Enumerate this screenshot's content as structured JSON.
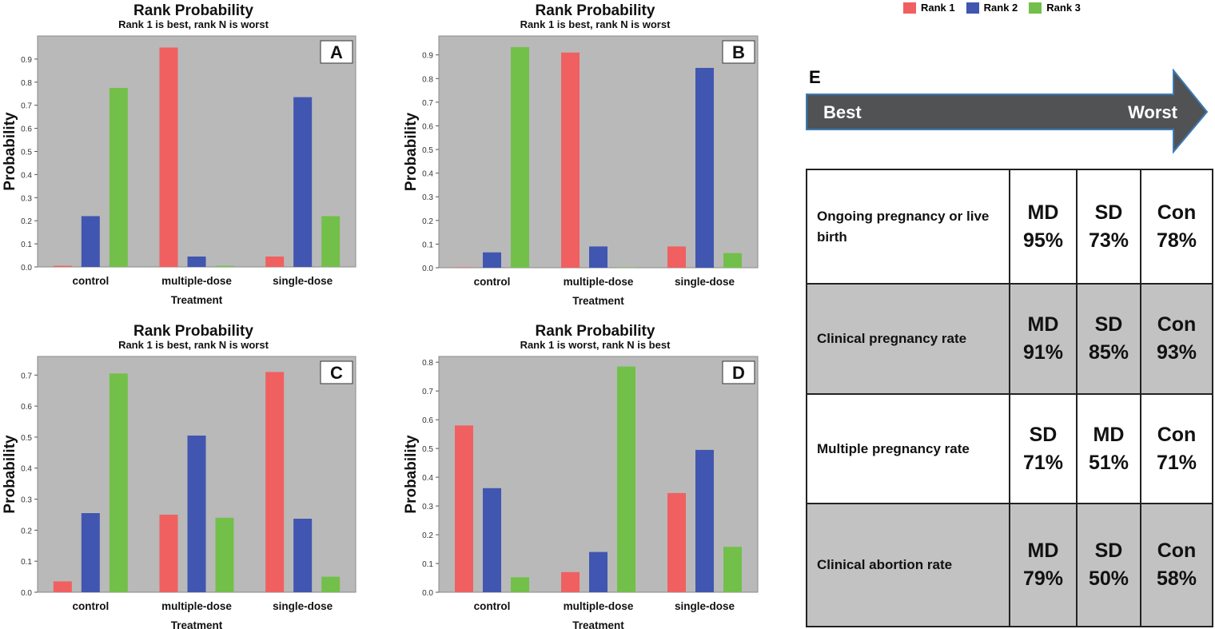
{
  "colors": {
    "rank1": "#f06060",
    "rank2": "#4056b0",
    "rank3": "#72c04a",
    "plot_bg": "#b9b9b9",
    "arrow": "#505254",
    "arrow_edge": "#3a7bb8",
    "row_gray": "#c2c2c2"
  },
  "legend": [
    {
      "label": "Rank 1",
      "color": "#f06060"
    },
    {
      "label": "Rank 2",
      "color": "#4056b0"
    },
    {
      "label": "Rank 3",
      "color": "#72c04a"
    }
  ],
  "chart_data": [
    {
      "panel": "A",
      "type": "bar",
      "title": "Rank Probability",
      "subtitle": "Rank 1 is best, rank N is worst",
      "xlabel": "Treatment",
      "ylabel": "Probability",
      "categories": [
        "control",
        "multiple-dose",
        "single-dose"
      ],
      "ylim": [
        0,
        1.0
      ],
      "yticks": [
        "0.0",
        "0.1",
        "0.2",
        "0.3",
        "0.4",
        "0.5",
        "0.6",
        "0.7",
        "0.8",
        "0.9"
      ],
      "series": [
        {
          "name": "Rank 1",
          "values": [
            0.005,
            0.95,
            0.045
          ]
        },
        {
          "name": "Rank 2",
          "values": [
            0.22,
            0.045,
            0.735
          ]
        },
        {
          "name": "Rank 3",
          "values": [
            0.775,
            0.005,
            0.22
          ]
        }
      ]
    },
    {
      "panel": "B",
      "type": "bar",
      "title": "Rank Probability",
      "subtitle": "Rank 1 is best, rank N is worst",
      "xlabel": "Treatment",
      "ylabel": "Probability",
      "categories": [
        "control",
        "multiple-dose",
        "single-dose"
      ],
      "ylim": [
        0,
        0.98
      ],
      "yticks": [
        "0.0",
        "0.1",
        "0.2",
        "0.3",
        "0.4",
        "0.5",
        "0.6",
        "0.7",
        "0.8",
        "0.9"
      ],
      "series": [
        {
          "name": "Rank 1",
          "values": [
            0.002,
            0.91,
            0.09
          ]
        },
        {
          "name": "Rank 2",
          "values": [
            0.065,
            0.09,
            0.845
          ]
        },
        {
          "name": "Rank 3",
          "values": [
            0.933,
            0.002,
            0.062
          ]
        }
      ]
    },
    {
      "panel": "C",
      "type": "bar",
      "title": "Rank Probability",
      "subtitle": "Rank 1 is best, rank N is worst",
      "xlabel": "Treatment",
      "ylabel": "Probability",
      "categories": [
        "control",
        "multiple-dose",
        "single-dose"
      ],
      "ylim": [
        0,
        0.76
      ],
      "yticks": [
        "0.0",
        "0.1",
        "0.2",
        "0.3",
        "0.4",
        "0.5",
        "0.6",
        "0.7"
      ],
      "series": [
        {
          "name": "Rank 1",
          "values": [
            0.035,
            0.25,
            0.71
          ]
        },
        {
          "name": "Rank 2",
          "values": [
            0.255,
            0.505,
            0.237
          ]
        },
        {
          "name": "Rank 3",
          "values": [
            0.705,
            0.24,
            0.05
          ]
        }
      ]
    },
    {
      "panel": "D",
      "type": "bar",
      "title": "Rank Probability",
      "subtitle": "Rank 1 is worst, rank N is best",
      "xlabel": "Treatment",
      "ylabel": "Probability",
      "categories": [
        "control",
        "multiple-dose",
        "single-dose"
      ],
      "ylim": [
        0,
        0.82
      ],
      "yticks": [
        "0.0",
        "0.1",
        "0.2",
        "0.3",
        "0.4",
        "0.5",
        "0.6",
        "0.7",
        "0.8"
      ],
      "series": [
        {
          "name": "Rank 1",
          "values": [
            0.58,
            0.07,
            0.345
          ]
        },
        {
          "name": "Rank 2",
          "values": [
            0.362,
            0.14,
            0.495
          ]
        },
        {
          "name": "Rank 3",
          "values": [
            0.052,
            0.785,
            0.158
          ]
        }
      ]
    }
  ],
  "panel_e": {
    "label": "E",
    "arrow": {
      "left": "Best",
      "right": "Worst"
    },
    "rows": [
      {
        "label": "Ongoing pregnancy or live birth",
        "cells": [
          {
            "name": "MD",
            "pct": "95%"
          },
          {
            "name": "SD",
            "pct": "73%"
          },
          {
            "name": "Con",
            "pct": "78%"
          }
        ]
      },
      {
        "label": "Clinical pregnancy rate",
        "cells": [
          {
            "name": "MD",
            "pct": "91%"
          },
          {
            "name": "SD",
            "pct": "85%"
          },
          {
            "name": "Con",
            "pct": "93%"
          }
        ]
      },
      {
        "label": "Multiple pregnancy rate",
        "cells": [
          {
            "name": "SD",
            "pct": "71%"
          },
          {
            "name": "MD",
            "pct": "51%"
          },
          {
            "name": "Con",
            "pct": "71%"
          }
        ]
      },
      {
        "label": "Clinical abortion rate",
        "cells": [
          {
            "name": "MD",
            "pct": "79%"
          },
          {
            "name": "SD",
            "pct": "50%"
          },
          {
            "name": "Con",
            "pct": "58%"
          }
        ]
      }
    ]
  }
}
